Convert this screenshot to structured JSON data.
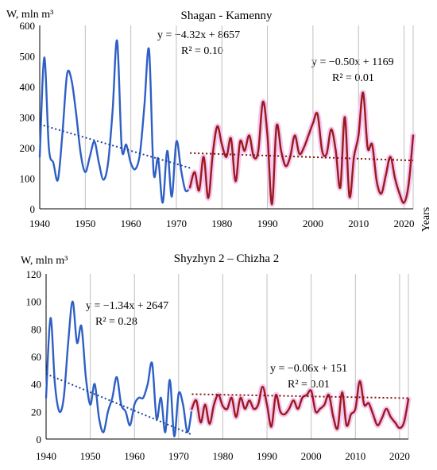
{
  "colors": {
    "series_a": "#2e5fc4",
    "series_b": "#9b1a1a",
    "trend_a": "#1f3f9f",
    "trend_b": "#8b0e0e",
    "glow": "#f3c2f0",
    "grid": "#bfbfbf"
  },
  "chart_data": [
    {
      "type": "line",
      "title": "Shagan - Kamenny",
      "ylabel": "W, mln m³",
      "xlabel": "Years",
      "xlim": [
        1940,
        2022
      ],
      "ylim": [
        0,
        600
      ],
      "xticks": [
        "1940",
        "1950",
        "1960",
        "1970",
        "1980",
        "1990",
        "2000",
        "2010",
        "2020"
      ],
      "yticks": [
        "0",
        "100",
        "200",
        "300",
        "400",
        "500",
        "600"
      ],
      "grid": "vertical",
      "series": [
        {
          "x": [
            1940,
            1941,
            1942,
            1943,
            1944,
            1945,
            1946,
            1947,
            1948,
            1949,
            1950,
            1951,
            1952,
            1953,
            1954,
            1955,
            1956,
            1957,
            1958,
            1959,
            1960,
            1961,
            1962,
            1963,
            1964,
            1965,
            1966,
            1967,
            1968,
            1969,
            1970,
            1971,
            1972,
            1973
          ],
          "y": [
            170,
            495,
            200,
            150,
            95,
            250,
            440,
            420,
            310,
            180,
            120,
            170,
            220,
            150,
            95,
            150,
            320,
            550,
            200,
            210,
            150,
            130,
            180,
            340,
            520,
            120,
            165,
            20,
            190,
            40,
            220,
            130,
            60,
            70
          ]
        },
        {
          "x": [
            1973,
            1974,
            1975,
            1976,
            1977,
            1978,
            1979,
            1980,
            1981,
            1982,
            1983,
            1984,
            1985,
            1986,
            1987,
            1988,
            1989,
            1990,
            1991,
            1992,
            1993,
            1994,
            1995,
            1996,
            1997,
            1998,
            1999,
            2000,
            2001,
            2002,
            2003,
            2004,
            2005,
            2006,
            2007,
            2008,
            2009,
            2010,
            2011,
            2012,
            2013,
            2014,
            2015,
            2016,
            2017,
            2018,
            2019,
            2020,
            2021,
            2022
          ],
          "y": [
            70,
            120,
            60,
            170,
            35,
            180,
            270,
            210,
            170,
            230,
            90,
            220,
            190,
            240,
            170,
            190,
            350,
            240,
            15,
            270,
            190,
            140,
            170,
            240,
            180,
            200,
            240,
            280,
            310,
            190,
            180,
            260,
            190,
            70,
            300,
            40,
            170,
            240,
            380,
            200,
            210,
            90,
            50,
            110,
            170,
            100,
            50,
            20,
            80,
            240
          ]
        }
      ],
      "trendlines": [
        {
          "equation": "y = −4.32x + 8657",
          "r2": "R² = 0.10",
          "slope": -4.32,
          "intercept": 8657,
          "x_range": [
            1940,
            1973
          ]
        },
        {
          "equation": "y = −0.50x + 1169",
          "r2": "R² = 0.01",
          "slope": -0.5,
          "intercept": 1169,
          "x_range": [
            1973,
            2022
          ]
        }
      ]
    },
    {
      "type": "line",
      "title": "Shyzhyn 2 – Chizha 2",
      "ylabel": "W, mln m³",
      "xlabel": "",
      "xlim": [
        1940,
        2022
      ],
      "ylim": [
        0,
        120
      ],
      "xticks": [
        "1940",
        "1950",
        "1960",
        "1970",
        "1980",
        "1990",
        "2000",
        "2010",
        "2020"
      ],
      "yticks": [
        "0",
        "20",
        "40",
        "60",
        "80",
        "100",
        "120"
      ],
      "grid": "vertical",
      "series": [
        {
          "x": [
            1940,
            1941,
            1942,
            1943,
            1944,
            1945,
            1946,
            1947,
            1948,
            1949,
            1950,
            1951,
            1952,
            1953,
            1954,
            1955,
            1956,
            1957,
            1958,
            1959,
            1960,
            1961,
            1962,
            1963,
            1964,
            1965,
            1966,
            1967,
            1968,
            1969,
            1970,
            1971,
            1972,
            1973
          ],
          "y": [
            30,
            88,
            40,
            20,
            30,
            70,
            100,
            70,
            82,
            45,
            25,
            40,
            15,
            5,
            20,
            30,
            45,
            25,
            20,
            10,
            25,
            30,
            30,
            40,
            55,
            15,
            30,
            5,
            43,
            2,
            33,
            25,
            5,
            22
          ]
        },
        {
          "x": [
            1973,
            1974,
            1975,
            1976,
            1977,
            1978,
            1979,
            1980,
            1981,
            1982,
            1983,
            1984,
            1985,
            1986,
            1987,
            1988,
            1989,
            1990,
            1991,
            1992,
            1993,
            1994,
            1995,
            1996,
            1997,
            1998,
            1999,
            2000,
            2001,
            2002,
            2003,
            2004,
            2005,
            2006,
            2007,
            2008,
            2009,
            2010,
            2011,
            2012,
            2013,
            2014,
            2015,
            2016,
            2017,
            2018,
            2019,
            2020,
            2021,
            2022
          ],
          "y": [
            22,
            28,
            12,
            25,
            11,
            25,
            32,
            24,
            22,
            30,
            16,
            30,
            22,
            28,
            22,
            25,
            38,
            25,
            9,
            32,
            20,
            18,
            22,
            28,
            22,
            30,
            32,
            35,
            20,
            22,
            25,
            32,
            16,
            8,
            34,
            10,
            18,
            22,
            42,
            25,
            26,
            18,
            10,
            15,
            22,
            16,
            12,
            8,
            12,
            29
          ]
        }
      ],
      "trendlines": [
        {
          "equation": "y = −1.34x + 2647",
          "r2": "R² = 0.28",
          "slope": -1.34,
          "intercept": 2647,
          "x_range": [
            1940,
            1973
          ]
        },
        {
          "equation": "y = −0.06x + 151",
          "r2": "R² = 0.01",
          "slope": -0.06,
          "intercept": 151,
          "x_range": [
            1973,
            2022
          ]
        }
      ]
    }
  ]
}
